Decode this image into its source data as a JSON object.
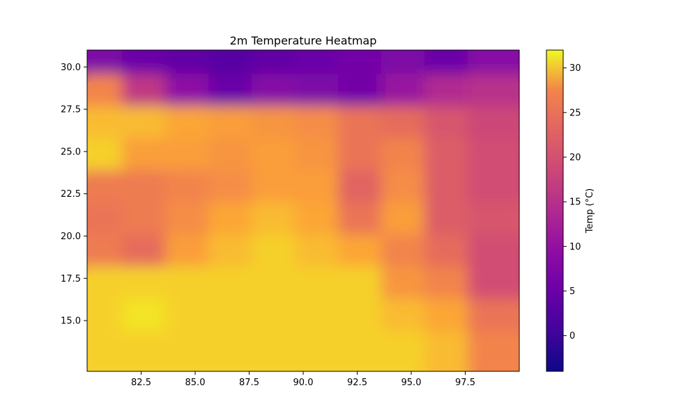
{
  "chart_data": {
    "type": "heatmap",
    "title": "2m Temperature Heatmap",
    "xlabel": "",
    "ylabel": "",
    "colormap": "plasma",
    "xlim": [
      80.0,
      100.0
    ],
    "ylim": [
      12.0,
      31.0
    ],
    "x_ticks": [
      82.5,
      85.0,
      87.5,
      90.0,
      92.5,
      95.0,
      97.5
    ],
    "x_tick_labels": [
      "82.5",
      "85.0",
      "87.5",
      "90.0",
      "92.5",
      "95.0",
      "97.5"
    ],
    "y_ticks": [
      15.0,
      17.5,
      20.0,
      22.5,
      25.0,
      27.5,
      30.0
    ],
    "y_tick_labels": [
      "15.0",
      "17.5",
      "20.0",
      "22.5",
      "25.0",
      "27.5",
      "30.0"
    ],
    "colorbar": {
      "label": "Temp (°C)",
      "vmin": -4.0,
      "vmax": 32.0,
      "ticks": [
        0,
        5,
        10,
        15,
        20,
        25,
        30
      ],
      "tick_labels": [
        "0",
        "5",
        "10",
        "15",
        "20",
        "25",
        "30"
      ]
    },
    "grid": false,
    "x": [
      80.5,
      82.5,
      84.5,
      86.5,
      88.5,
      90.5,
      92.5,
      94.5,
      96.5,
      98.5
    ],
    "y": [
      30.0,
      28.0,
      26.0,
      24.0,
      22.0,
      20.0,
      18.0,
      16.0,
      14.0,
      12.5
    ],
    "values": [
      [
        6,
        4,
        3,
        2,
        3,
        4,
        5,
        6,
        4,
        7
      ],
      [
        24,
        14,
        8,
        4,
        7,
        6,
        5,
        9,
        12,
        13
      ],
      [
        29,
        29,
        28,
        27,
        26,
        25,
        22,
        21,
        18,
        16
      ],
      [
        30,
        27,
        27,
        26,
        27,
        26,
        22,
        24,
        19,
        17
      ],
      [
        23,
        23,
        24,
        25,
        27,
        27,
        20,
        25,
        19,
        17
      ],
      [
        22,
        23,
        25,
        28,
        29,
        28,
        22,
        27,
        19,
        18
      ],
      [
        23,
        21,
        27,
        29,
        30,
        29,
        28,
        24,
        21,
        17
      ],
      [
        30,
        30,
        30,
        30,
        30,
        30,
        30,
        26,
        24,
        17
      ],
      [
        30,
        31,
        30,
        30,
        30,
        30,
        30,
        29,
        28,
        22
      ],
      [
        30,
        30,
        30,
        30,
        30,
        30,
        30,
        30,
        29,
        24
      ]
    ]
  }
}
